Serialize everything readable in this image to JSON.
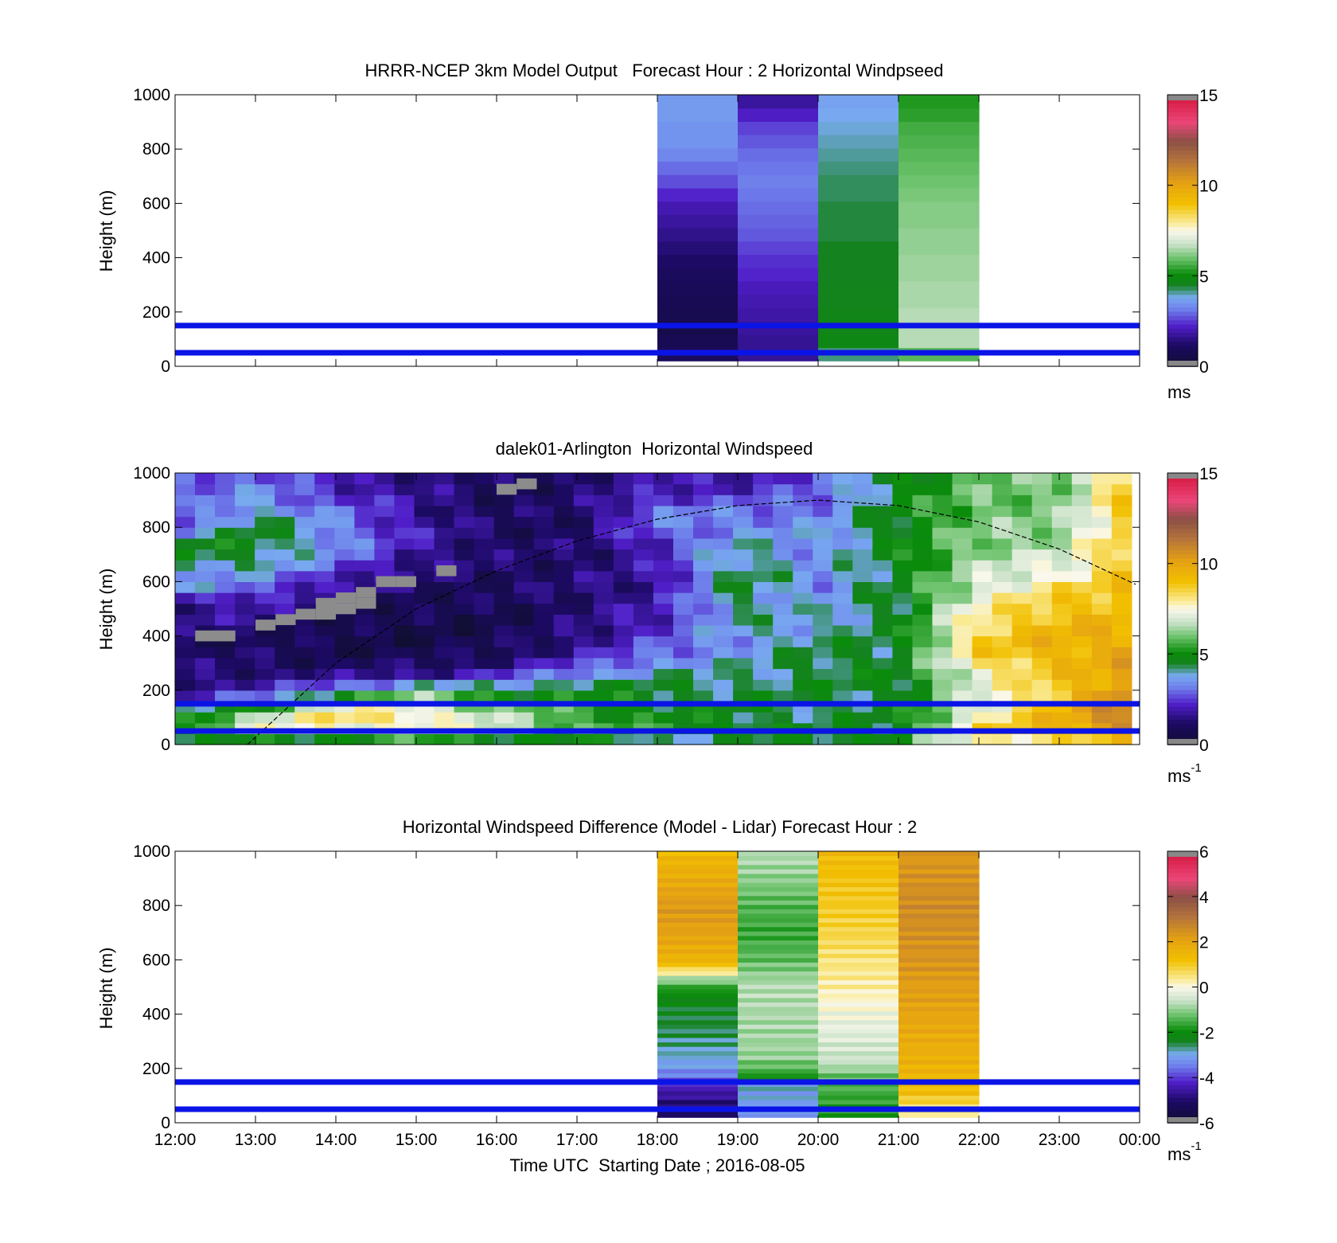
{
  "chart_data": [
    {
      "type": "heatmap",
      "title": "HRRR-NCEP 3km Model Output   Forecast Hour : 2 Horizontal Windpseed",
      "ylabel": "Height (m)",
      "xlim_hours": [
        12,
        24
      ],
      "ylim": [
        0,
        1000
      ],
      "yticks": [
        "0",
        "200",
        "400",
        "600",
        "800",
        "1000"
      ],
      "colorbar": {
        "min": 0,
        "max": 15,
        "ticks": [
          "0",
          "5",
          "10",
          "15"
        ],
        "unit": "ms",
        "unit_sup": ""
      },
      "reference_lines_m": [
        50,
        150
      ],
      "columns": [
        {
          "start_hour": 18,
          "end_hour": 19,
          "ymin": 20,
          "ymax": 1000,
          "values_low_to_high": [
            1.0,
            0.8,
            0.6,
            0.7,
            0.8,
            0.9,
            1.0,
            1.2,
            1.4,
            1.6,
            1.8,
            2.0,
            2.3,
            2.7,
            3.0,
            3.3,
            3.5,
            3.5,
            3.6,
            3.6
          ]
        },
        {
          "start_hour": 19,
          "end_hour": 20,
          "ymin": 20,
          "ymax": 1000,
          "values_low_to_high": [
            1.7,
            1.7,
            1.8,
            1.9,
            2.0,
            2.1,
            2.3,
            2.4,
            2.6,
            2.8,
            2.9,
            3.0,
            3.1,
            3.2,
            3.1,
            3.0,
            2.8,
            2.6,
            2.2,
            1.8
          ]
        },
        {
          "start_hour": 20,
          "end_hour": 21,
          "ymin": 20,
          "ymax": 1000,
          "values_low_to_high": [
            4.2,
            4.8,
            4.7,
            4.7,
            4.6,
            4.6,
            4.5,
            4.5,
            4.5,
            4.4,
            4.4,
            4.4,
            4.3,
            4.3,
            4.2,
            4.1,
            4.0,
            3.9,
            3.8,
            3.7
          ]
        },
        {
          "start_hour": 21,
          "end_hour": 22,
          "ymin": 20,
          "ymax": 1000,
          "values_low_to_high": [
            5.8,
            6.6,
            6.6,
            6.6,
            6.5,
            6.5,
            6.4,
            6.4,
            6.3,
            6.3,
            6.2,
            6.2,
            6.1,
            6.0,
            5.9,
            5.8,
            5.7,
            5.6,
            5.4,
            5.3
          ]
        }
      ]
    },
    {
      "type": "heatmap",
      "title": "dalek01-Arlington  Horizontal Windspeed",
      "ylabel": "Height (m)",
      "xlim_hours": [
        12,
        24
      ],
      "ylim": [
        0,
        1000
      ],
      "yticks": [
        "0",
        "200",
        "400",
        "600",
        "800",
        "1000"
      ],
      "colorbar": {
        "min": 0,
        "max": 15,
        "ticks": [
          "0",
          "5",
          "10",
          "15"
        ],
        "unit": "ms",
        "unit_sup": "-1"
      },
      "reference_lines_m": [
        50,
        150
      ],
      "height_m": [
        20,
        60,
        100,
        140,
        180,
        220,
        260,
        300,
        340,
        380,
        420,
        460,
        500,
        540,
        580,
        620,
        660,
        700,
        740,
        780,
        820,
        860,
        900,
        940,
        980
      ],
      "anchor_hours": [
        12.0,
        13.0,
        14.0,
        15.0,
        16.0,
        17.0,
        18.0,
        19.0,
        20.0,
        21.0,
        22.0,
        23.0,
        23.9
      ],
      "profiles": [
        [
          4.2,
          4.8,
          4.6,
          3.5,
          2.0,
          1.6,
          1.4,
          1.2,
          1.1,
          1.0,
          1.4,
          1.8,
          1.6,
          2.2,
          3.5,
          3.0,
          4.2,
          4.8,
          4.5,
          3.5,
          2.8,
          2.4,
          2.6,
          2.8,
          3.0
        ],
        [
          4.8,
          7.2,
          6.8,
          5.0,
          2.8,
          1.8,
          1.4,
          1.2,
          1.0,
          0.9,
          1.2,
          1.5,
          1.8,
          2.5,
          3.0,
          3.5,
          4.0,
          4.5,
          4.8,
          4.6,
          4.3,
          4.0,
          3.6,
          3.3,
          3.0
        ],
        [
          5.0,
          7.6,
          8.2,
          7.4,
          5.0,
          2.8,
          1.4,
          1.0,
          0.8,
          0.7,
          0.7,
          0.8,
          1.0,
          1.3,
          1.8,
          2.2,
          2.8,
          3.2,
          3.5,
          3.5,
          3.3,
          3.0,
          2.6,
          2.3,
          2.0
        ],
        [
          5.4,
          7.6,
          8.0,
          7.4,
          6.2,
          4.0,
          1.8,
          1.0,
          0.7,
          0.6,
          0.6,
          0.7,
          0.8,
          1.0,
          1.2,
          1.4,
          1.6,
          1.8,
          1.9,
          2.0,
          1.9,
          1.8,
          1.7,
          1.6,
          1.6
        ],
        [
          5.0,
          6.8,
          6.6,
          6.0,
          5.2,
          3.6,
          2.2,
          1.4,
          1.0,
          0.8,
          0.7,
          0.7,
          0.8,
          0.9,
          1.0,
          1.1,
          1.2,
          1.2,
          1.2,
          1.1,
          1.0,
          1.0,
          1.0,
          0.9,
          0.9
        ],
        [
          4.8,
          5.8,
          5.6,
          5.4,
          5.0,
          4.6,
          3.4,
          2.4,
          1.8,
          1.6,
          1.4,
          1.3,
          1.3,
          1.3,
          1.3,
          1.3,
          1.2,
          1.2,
          1.2,
          1.1,
          1.1,
          1.1,
          1.2,
          1.2,
          1.3
        ],
        [
          4.2,
          5.2,
          4.9,
          4.8,
          4.6,
          4.4,
          4.0,
          3.6,
          3.0,
          2.6,
          2.4,
          2.2,
          2.0,
          1.9,
          1.8,
          1.8,
          1.9,
          2.0,
          2.4,
          2.8,
          3.0,
          3.2,
          2.6,
          2.0,
          1.8
        ],
        [
          4.4,
          4.9,
          4.6,
          4.5,
          4.4,
          4.3,
          4.0,
          3.8,
          3.6,
          3.6,
          3.8,
          4.0,
          4.2,
          4.3,
          4.5,
          4.6,
          4.5,
          4.2,
          3.8,
          3.5,
          3.4,
          3.0,
          2.6,
          2.2,
          2.0
        ],
        [
          4.6,
          4.4,
          4.3,
          4.3,
          4.4,
          4.5,
          4.5,
          4.6,
          4.4,
          4.2,
          4.0,
          3.8,
          3.6,
          3.5,
          3.4,
          3.4,
          3.3,
          3.4,
          3.5,
          3.4,
          3.3,
          3.2,
          3.0,
          2.8,
          2.7
        ],
        [
          5.2,
          4.8,
          4.7,
          4.6,
          4.6,
          4.6,
          4.6,
          4.6,
          4.6,
          4.6,
          4.5,
          4.5,
          4.5,
          4.6,
          4.6,
          4.7,
          4.8,
          4.8,
          4.8,
          4.9,
          4.9,
          4.9,
          4.8,
          4.8,
          4.7
        ],
        [
          7.6,
          8.2,
          7.6,
          7.2,
          7.0,
          7.2,
          7.6,
          8.2,
          8.6,
          8.6,
          8.4,
          8.2,
          7.8,
          7.4,
          7.0,
          6.8,
          6.6,
          6.4,
          6.2,
          6.2,
          6.1,
          6.0,
          6.0,
          5.9,
          5.9
        ],
        [
          8.6,
          9.6,
          9.5,
          9.3,
          9.0,
          8.8,
          9.0,
          9.2,
          9.5,
          9.6,
          9.4,
          9.2,
          9.0,
          8.6,
          8.2,
          7.6,
          7.2,
          6.8,
          6.5,
          6.4,
          6.2,
          6.1,
          6.1,
          6.0,
          6.0
        ],
        [
          9.0,
          10.8,
          11.2,
          11.2,
          11.0,
          10.6,
          10.3,
          10.0,
          9.8,
          9.6,
          9.5,
          9.4,
          9.3,
          9.2,
          9.1,
          9.0,
          9.0,
          9.0,
          9.0,
          9.0,
          9.0,
          9.0,
          9.0,
          9.0,
          9.0
        ]
      ],
      "missing_cells": [
        {
          "hour": 12.25,
          "height_m": 400
        },
        {
          "hour": 12.5,
          "height_m": 400
        },
        {
          "hour": 13.0,
          "height_m": 440
        },
        {
          "hour": 13.25,
          "height_m": 460
        },
        {
          "hour": 13.5,
          "height_m": 480
        },
        {
          "hour": 13.75,
          "height_m": 480
        },
        {
          "hour": 13.75,
          "height_m": 520
        },
        {
          "hour": 14.0,
          "height_m": 500
        },
        {
          "hour": 14.0,
          "height_m": 540
        },
        {
          "hour": 14.25,
          "height_m": 560
        },
        {
          "hour": 14.25,
          "height_m": 520
        },
        {
          "hour": 14.5,
          "height_m": 600
        },
        {
          "hour": 14.75,
          "height_m": 600
        },
        {
          "hour": 15.25,
          "height_m": 640
        },
        {
          "hour": 16.0,
          "height_m": 940
        },
        {
          "hour": 16.25,
          "height_m": 960
        }
      ],
      "boundary_layer_curve": {
        "style": "dashed",
        "points": [
          [
            12.9,
            0
          ],
          [
            14.0,
            300
          ],
          [
            15.0,
            500
          ],
          [
            16.0,
            640
          ],
          [
            17.0,
            750
          ],
          [
            18.0,
            830
          ],
          [
            19.0,
            880
          ],
          [
            20.0,
            900
          ],
          [
            21.0,
            880
          ],
          [
            22.0,
            820
          ],
          [
            23.0,
            720
          ],
          [
            23.95,
            590
          ]
        ]
      }
    },
    {
      "type": "heatmap",
      "title": "Horizontal Windspeed Difference (Model - Lidar) Forecast Hour : 2",
      "ylabel": "Height (m)",
      "xlabel": "Time UTC  Starting Date ; 2016-08-05",
      "xticks": [
        "12:00",
        "13:00",
        "14:00",
        "15:00",
        "16:00",
        "17:00",
        "18:00",
        "19:00",
        "20:00",
        "21:00",
        "22:00",
        "23:00",
        "00:00"
      ],
      "xlim_hours": [
        12,
        24
      ],
      "ylim": [
        0,
        1000
      ],
      "yticks": [
        "0",
        "200",
        "400",
        "600",
        "800",
        "1000"
      ],
      "colorbar": {
        "min": -6,
        "max": 6,
        "ticks": [
          "-6",
          "-4",
          "-2",
          "0",
          "2",
          "4",
          "6"
        ],
        "unit": "ms",
        "unit_sup": "-1"
      },
      "reference_lines_m": [
        50,
        150
      ],
      "columns": [
        {
          "start_hour": 18,
          "end_hour": 19,
          "ymin": 20,
          "ymax": 1000,
          "anchors": [
            [
              20,
              -5.2
            ],
            [
              60,
              -5.0
            ],
            [
              100,
              -4.6
            ],
            [
              140,
              -4.2
            ],
            [
              180,
              -3.4
            ],
            [
              220,
              -3.0
            ],
            [
              260,
              -2.8
            ],
            [
              320,
              -2.6
            ],
            [
              400,
              -2.4
            ],
            [
              480,
              -2.0
            ],
            [
              520,
              -1.2
            ],
            [
              545,
              -0.2
            ],
            [
              560,
              0.6
            ],
            [
              600,
              1.6
            ],
            [
              700,
              2.1
            ],
            [
              800,
              2.3
            ],
            [
              900,
              1.8
            ],
            [
              1000,
              1.4
            ]
          ]
        },
        {
          "start_hour": 19,
          "end_hour": 20,
          "ymin": 20,
          "ymax": 1000,
          "anchors": [
            [
              20,
              -3.1
            ],
            [
              100,
              -3.0
            ],
            [
              150,
              -2.9
            ],
            [
              180,
              -1.6
            ],
            [
              250,
              -0.9
            ],
            [
              400,
              -0.8
            ],
            [
              500,
              -0.7
            ],
            [
              600,
              -1.3
            ],
            [
              700,
              -1.6
            ],
            [
              800,
              -1.4
            ],
            [
              900,
              -1.0
            ],
            [
              1000,
              -0.7
            ]
          ]
        },
        {
          "start_hour": 20,
          "end_hour": 21,
          "ymin": 20,
          "ymax": 1000,
          "anchors": [
            [
              20,
              -1.8
            ],
            [
              100,
              -1.6
            ],
            [
              180,
              -1.2
            ],
            [
              220,
              -0.6
            ],
            [
              300,
              -0.4
            ],
            [
              400,
              -0.1
            ],
            [
              500,
              0.3
            ],
            [
              600,
              0.5
            ],
            [
              700,
              0.8
            ],
            [
              800,
              1.0
            ],
            [
              900,
              1.2
            ],
            [
              1000,
              1.4
            ]
          ]
        },
        {
          "start_hour": 21,
          "end_hour": 22,
          "ymin": 20,
          "ymax": 1000,
          "anchors": [
            [
              20,
              0.2
            ],
            [
              60,
              0.5
            ],
            [
              100,
              1.2
            ],
            [
              200,
              1.6
            ],
            [
              400,
              2.0
            ],
            [
              600,
              2.4
            ],
            [
              800,
              2.6
            ],
            [
              1000,
              2.3
            ]
          ]
        }
      ]
    }
  ]
}
